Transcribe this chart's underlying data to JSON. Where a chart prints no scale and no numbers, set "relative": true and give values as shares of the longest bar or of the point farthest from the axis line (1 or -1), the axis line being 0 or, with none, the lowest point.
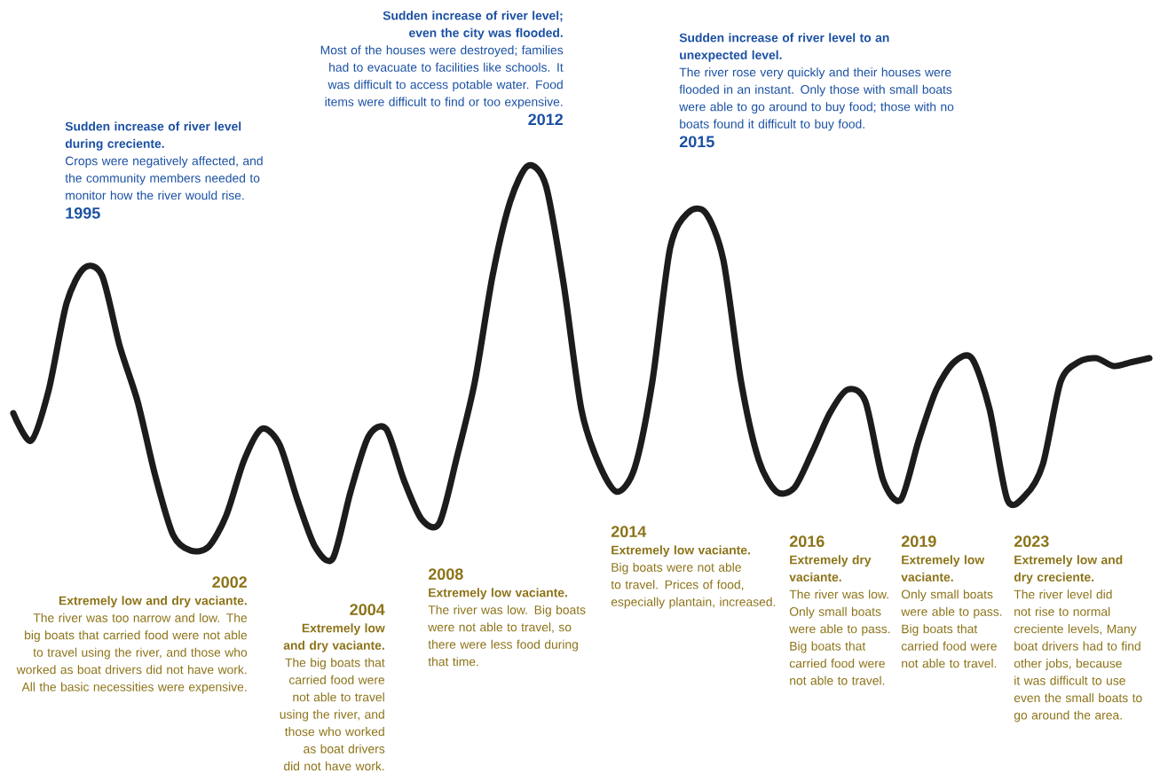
{
  "chart_data": {
    "type": "line",
    "relative": true,
    "line_style": "solid",
    "marker": "none",
    "categories": [
      null,
      null,
      null,
      null,
      null,
      null,
      null,
      null,
      null,
      null,
      null,
      null,
      null,
      null,
      null,
      null,
      null,
      null,
      null,
      null,
      null,
      null,
      null,
      null,
      null,
      null,
      null,
      null,
      null,
      null,
      null,
      null,
      null,
      null,
      null,
      null,
      null,
      null,
      null,
      null,
      null,
      null,
      null,
      null,
      null,
      null,
      null,
      null,
      null,
      null,
      null,
      null,
      null,
      null,
      null,
      null,
      null,
      null,
      null,
      null,
      null,
      null,
      null,
      null,
      null
    ],
    "series": [
      {
        "color": "#1c1c1c",
        "values": [
          0.37,
          0.3,
          0.43,
          0.65,
          0.74,
          0.72,
          0.54,
          0.4,
          0.21,
          0.06,
          0.02,
          0.03,
          0.11,
          0.25,
          0.33,
          0.29,
          0.15,
          0.03,
          0.0,
          0.17,
          0.31,
          0.33,
          0.2,
          0.1,
          0.09,
          0.26,
          0.45,
          0.72,
          0.91,
          1.0,
          0.95,
          0.7,
          0.38,
          0.24,
          0.17,
          0.23,
          0.45,
          0.79,
          0.88,
          0.88,
          0.76,
          0.45,
          0.25,
          0.17,
          0.18,
          0.27,
          0.37,
          0.43,
          0.4,
          0.2,
          0.15,
          0.3,
          0.43,
          0.5,
          0.51,
          0.38,
          0.15,
          0.16,
          0.24,
          0.45,
          0.5,
          0.51,
          0.49,
          0.5,
          0.51
        ]
      }
    ],
    "annotations": [
      "Sudden increase of river level during creciente.",
      "Crops were negatively affected, and the community members needed to monitor how the river would rise.",
      "1995",
      "Sudden increase of river level; even the city was flooded.",
      "Most of the houses were destroyed; families had to evacuate to facilities like schools. It was difficult to access potable water. Food items were difficult to find or too expensive.",
      "2012",
      "Sudden increase of river level to an unexpected level.",
      "The river rose very quickly and their houses were flooded in an instant. Only those with small boats were able to go around to buy food; those with no boats found it difficult to buy food.",
      "2015",
      "2002",
      "Extremely low and dry vaciante.",
      "The river was too narrow and low. The big boats that carried food were not able to travel using the river, and those who worked as boat drivers did not have work. All the basic necessities were expensive.",
      "2004",
      "Extremely low and dry vaciante.",
      "The big boats that carried food were not able to travel using the river, and those who worked as boat drivers did not have work.",
      "2008",
      "Extremely low vaciante.",
      "The river was low. Big boats were not able to travel, so there were less food during that time.",
      "2014",
      "Extremely low vaciante.",
      "Big boats were not able to travel. Prices of food, especially plantain, increased.",
      "2016",
      "Extremely dry vaciante.",
      "The river was low. Only small boats were able to pass. Big boats that carried food were not able to travel.",
      "2019",
      "Extremely low vaciante.",
      "Only small boats were able to pass. Big boats that carried food were not able to travel.",
      "2023",
      "Extremely low and dry creciente.",
      "The river level did not rise to normal creciente levels, Many boat drivers had to find other jobs, because it was difficult to use even the small boats to go around the area."
    ]
  }
}
